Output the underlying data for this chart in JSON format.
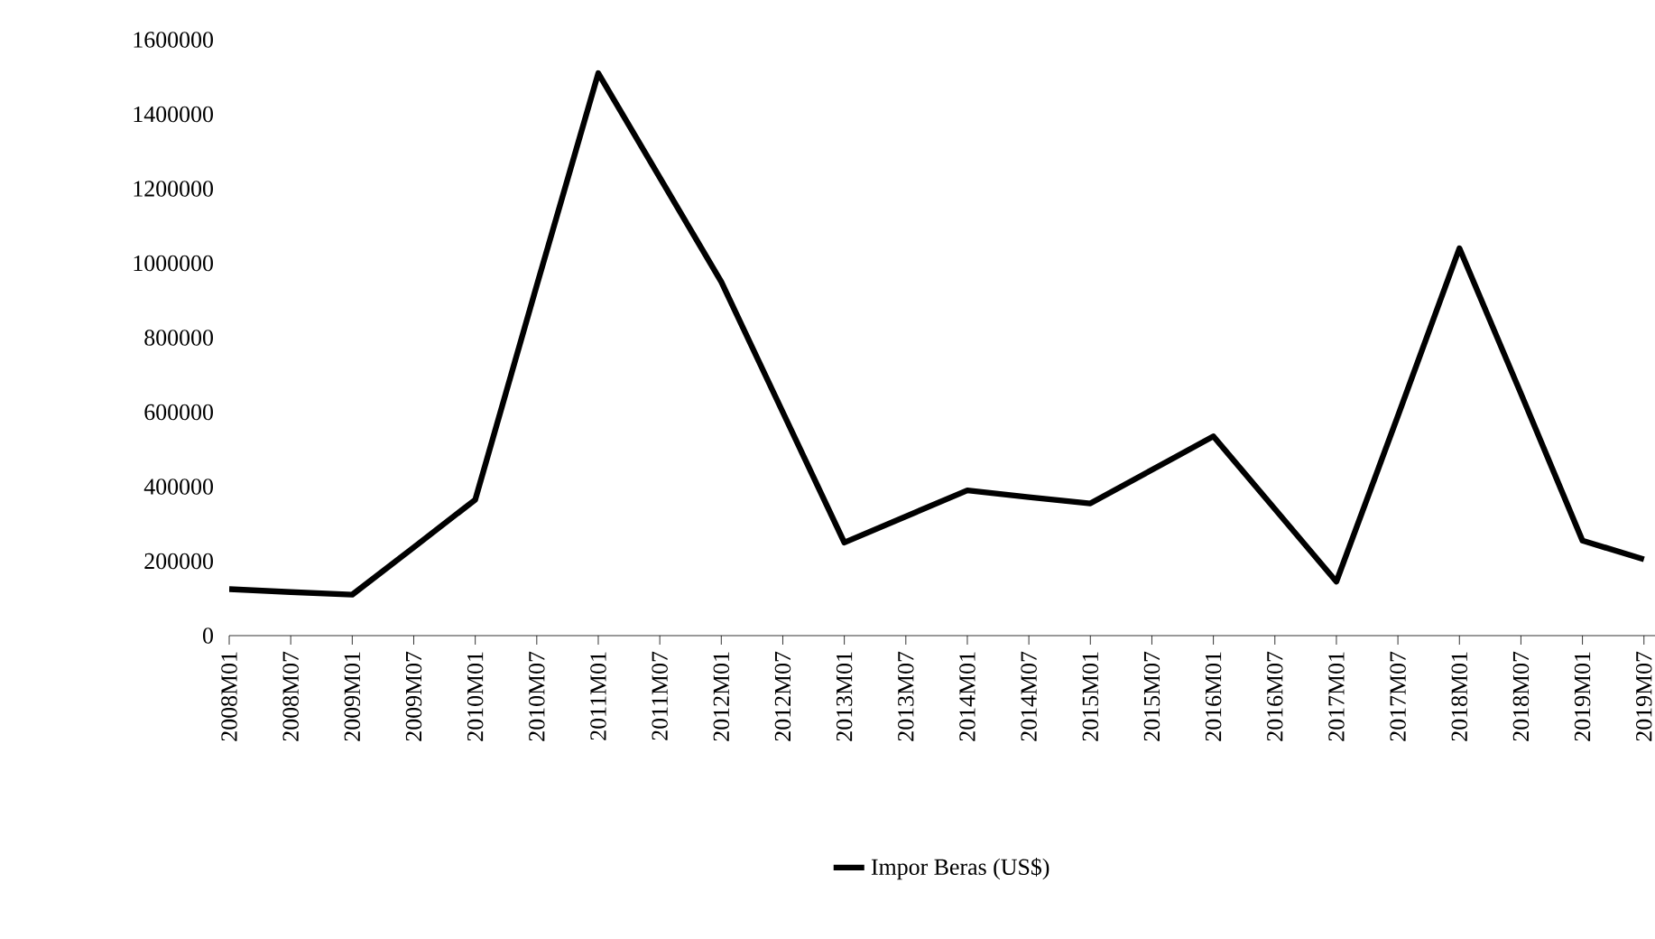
{
  "chart_data": {
    "type": "line",
    "categories": [
      "2008M01",
      "2008M07",
      "2009M01",
      "2009M07",
      "2010M01",
      "2010M07",
      "2011M01",
      "2011M07",
      "2012M01",
      "2012M07",
      "2013M01",
      "2013M07",
      "2014M01",
      "2014M07",
      "2015M01",
      "2015M07",
      "2016M01",
      "2016M07",
      "2017M01",
      "2017M07",
      "2018M01",
      "2018M07",
      "2019M01",
      "2019M07"
    ],
    "series": [
      {
        "name": "Impor Beras (US$)",
        "color": "#000000",
        "values": [
          125000,
          117000,
          110000,
          237000,
          365000,
          940000,
          1510000,
          1230000,
          950000,
          600000,
          250000,
          320000,
          390000,
          372000,
          355000,
          445000,
          535000,
          340000,
          145000,
          590000,
          1040000,
          650000,
          255000,
          205000
        ]
      }
    ],
    "ylim": [
      0,
      1600000
    ],
    "yticks": [
      0,
      200000,
      400000,
      600000,
      800000,
      1000000,
      1200000,
      1400000,
      1600000
    ],
    "grid": false,
    "legend": "bottom",
    "marker": "none",
    "line_style": "solid"
  }
}
